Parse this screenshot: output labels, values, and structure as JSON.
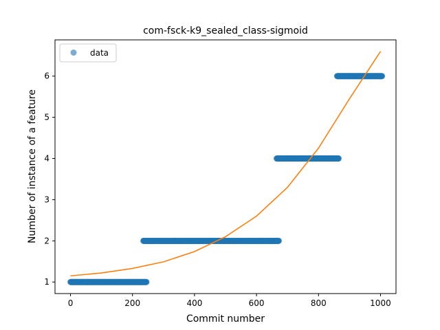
{
  "chart_data": {
    "type": "scatter",
    "title": "com-fsck-k9_sealed_class-sigmoid",
    "xlabel": "Commit number",
    "ylabel": "Number of instance of a feature",
    "xlim": [
      -50,
      1050
    ],
    "ylim": [
      0.72,
      6.88
    ],
    "xticks": [
      0,
      200,
      400,
      600,
      800,
      1000
    ],
    "yticks": [
      1,
      2,
      3,
      4,
      5,
      6
    ],
    "legend": {
      "position": "top-left",
      "entries": [
        {
          "label": "data",
          "marker": "circle",
          "color": "#1f77b4"
        }
      ]
    },
    "grid": false,
    "series": [
      {
        "name": "data",
        "kind": "scatter",
        "color": "#1f77b4",
        "alpha": 0.6,
        "segments": [
          {
            "x_start": 0,
            "x_end": 245,
            "y": 1
          },
          {
            "x_start": 235,
            "x_end": 672,
            "y": 2
          },
          {
            "x_start": 665,
            "x_end": 865,
            "y": 4
          },
          {
            "x_start": 860,
            "x_end": 1005,
            "y": 6
          }
        ]
      },
      {
        "kind": "line",
        "color": "#ff7f0e",
        "x": [
          0,
          100,
          200,
          300,
          400,
          500,
          600,
          700,
          800,
          900,
          1000
        ],
        "y": [
          1.15,
          1.22,
          1.33,
          1.49,
          1.74,
          2.1,
          2.6,
          3.3,
          4.25,
          5.45,
          6.6
        ]
      }
    ]
  }
}
